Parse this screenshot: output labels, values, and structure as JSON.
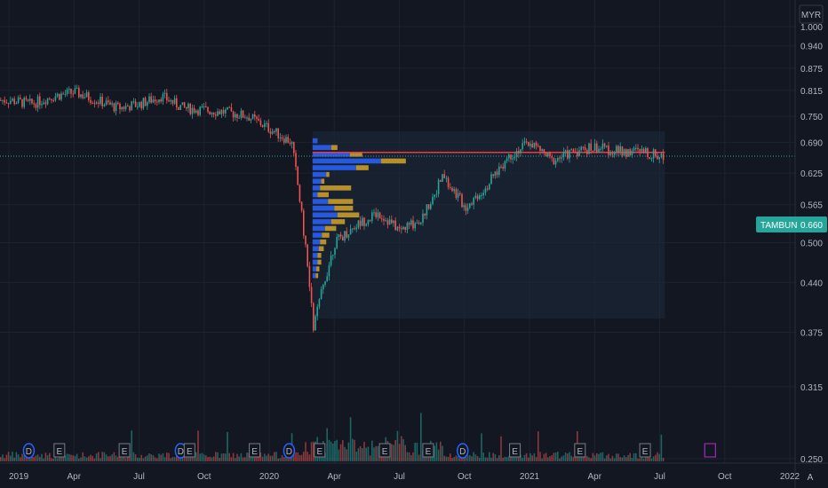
{
  "chart_data": {
    "type": "candlestick",
    "symbol": "TAMBUN",
    "currency": "MYR",
    "last_price": "0.660",
    "price_axis": {
      "ticks": [
        "1.000",
        "0.940",
        "0.875",
        "0.815",
        "0.750",
        "0.690",
        "0.625",
        "0.565",
        "0.500",
        "0.440",
        "0.375",
        "0.315",
        "0.250"
      ],
      "scale": "log"
    },
    "time_axis": {
      "ticks": [
        "2019",
        "Apr",
        "Jul",
        "Oct",
        "2020",
        "Apr",
        "Jul",
        "Oct",
        "2021",
        "Apr",
        "Jul",
        "Oct",
        "2022"
      ],
      "auto_label": "A"
    },
    "price_path": [
      [
        "2019-01",
        0.79
      ],
      [
        "2019-02",
        0.78
      ],
      [
        "2019-03",
        0.8
      ],
      [
        "2019-04",
        0.81
      ],
      [
        "2019-05",
        0.79
      ],
      [
        "2019-06",
        0.77
      ],
      [
        "2019-07",
        0.78
      ],
      [
        "2019-08",
        0.8
      ],
      [
        "2019-09",
        0.77
      ],
      [
        "2019-10",
        0.765
      ],
      [
        "2019-11",
        0.76
      ],
      [
        "2019-12",
        0.75
      ],
      [
        "2020-01",
        0.72
      ],
      [
        "2020-02",
        0.69
      ],
      [
        "2020-03",
        0.38
      ],
      [
        "2020-04",
        0.5
      ],
      [
        "2020-05",
        0.53
      ],
      [
        "2020-06",
        0.55
      ],
      [
        "2020-07",
        0.52
      ],
      [
        "2020-08",
        0.54
      ],
      [
        "2020-09",
        0.62
      ],
      [
        "2020-10",
        0.56
      ],
      [
        "2020-11",
        0.6
      ],
      [
        "2020-12",
        0.66
      ],
      [
        "2021-01",
        0.69
      ],
      [
        "2021-02",
        0.65
      ],
      [
        "2021-03",
        0.67
      ],
      [
        "2021-04",
        0.68
      ],
      [
        "2021-05",
        0.67
      ],
      [
        "2021-06",
        0.67
      ],
      [
        "2021-07",
        0.66
      ]
    ],
    "volume_profile": {
      "up": [
        8,
        30,
        60,
        110,
        70,
        22,
        14,
        12,
        8,
        25,
        35,
        40,
        30,
        20,
        15,
        12,
        10,
        8,
        8,
        6,
        5
      ],
      "down": [
        0,
        10,
        20,
        40,
        20,
        5,
        5,
        50,
        18,
        40,
        30,
        35,
        22,
        18,
        12,
        10,
        8,
        6,
        6,
        5,
        4
      ]
    },
    "markers": [
      {
        "type": "D",
        "date": "2019-02"
      },
      {
        "type": "E",
        "date": "2019-03"
      },
      {
        "type": "E",
        "date": "2019-06"
      },
      {
        "type": "D",
        "date": "2019-09"
      },
      {
        "type": "E",
        "date": "2019-09"
      },
      {
        "type": "E",
        "date": "2019-12"
      },
      {
        "type": "D",
        "date": "2020-02"
      },
      {
        "type": "E",
        "date": "2020-03"
      },
      {
        "type": "E",
        "date": "2020-06"
      },
      {
        "type": "E",
        "date": "2020-08"
      },
      {
        "type": "D",
        "date": "2020-10"
      },
      {
        "type": "E",
        "date": "2020-12"
      },
      {
        "type": "E",
        "date": "2021-03"
      },
      {
        "type": "E",
        "date": "2021-06"
      },
      {
        "type": "E",
        "date": "2021-09"
      }
    ]
  },
  "colors": {
    "up": "#26a69a",
    "down": "#ef5350",
    "background": "#131722",
    "grid": "#1e222d",
    "profile_up": "#2962ff",
    "profile_down": "#d4a32a",
    "poc_line": "#f23645",
    "price_label": "#26a69a",
    "dividend": "#2962ff",
    "earnings_future": "#9c27b0"
  }
}
